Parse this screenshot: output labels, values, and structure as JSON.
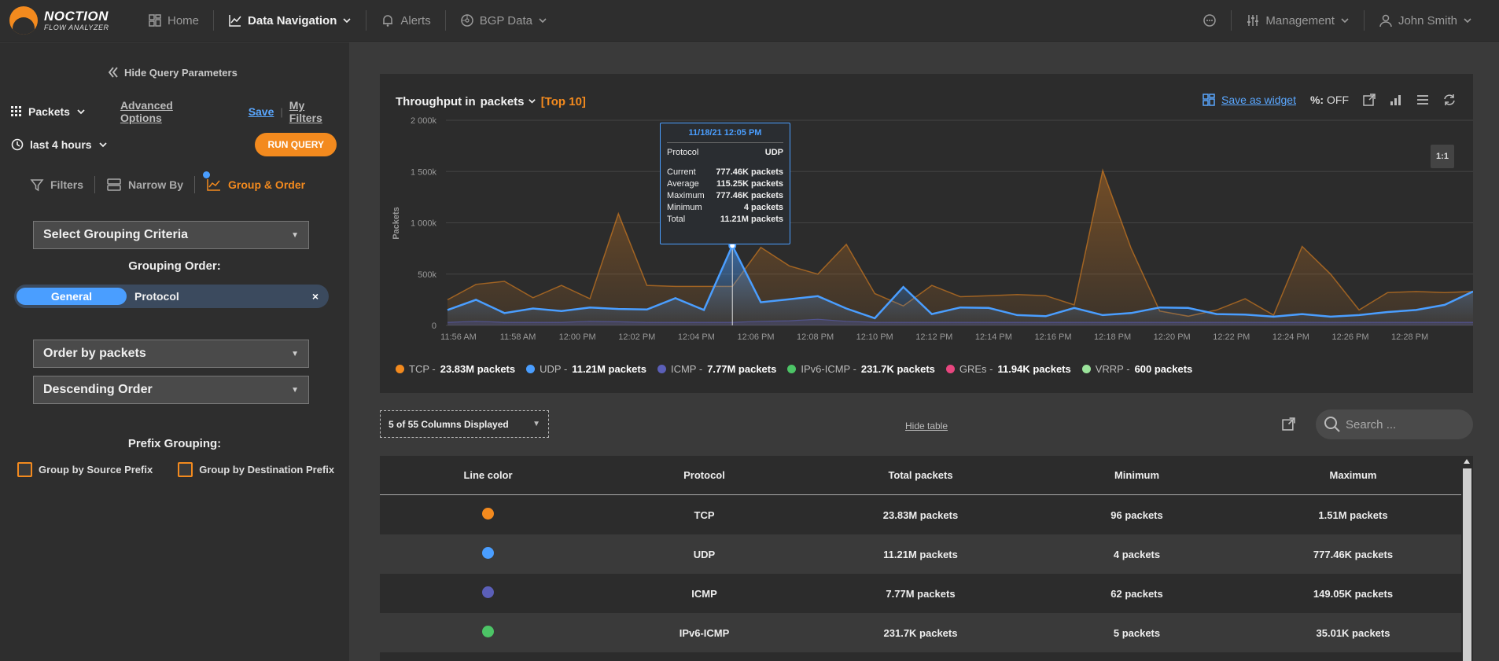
{
  "app": {
    "logo_line1": "NOCTION",
    "logo_line2": "FLOW ANALYZER"
  },
  "nav": {
    "home": "Home",
    "data_navigation": "Data Navigation",
    "alerts": "Alerts",
    "bgp_data": "BGP Data",
    "management": "Management",
    "user": "John Smith"
  },
  "sidebar": {
    "hide_query": "Hide Query Parameters",
    "measure": "Packets",
    "advanced_options": "Advanced Options",
    "save": "Save",
    "my_filters": "My Filters",
    "time_range": "last 4 hours",
    "run_query": "RUN QUERY",
    "tabs": {
      "filters": "Filters",
      "narrow_by": "Narrow By",
      "group_order": "Group & Order"
    },
    "grouping_criteria": "Select Grouping Criteria",
    "grouping_order_title": "Grouping Order:",
    "pill_general": "General",
    "pill_protocol": "Protocol",
    "pill_close": "×",
    "order_by": "Order by packets",
    "order_direction": "Descending Order",
    "prefix_title": "Prefix Grouping:",
    "group_source": "Group by Source Prefix",
    "group_dest": "Group by Destination Prefix"
  },
  "chart_header": {
    "title_prefix": "Throughput in",
    "unit": "packets",
    "top": "[Top 10]",
    "save_widget": "Save as widget",
    "pct_label": "%:",
    "pct_value": "OFF",
    "ratio_button": "1:1"
  },
  "chart_data": {
    "type": "area",
    "title": "Throughput in packets [Top 10]",
    "ylabel": "Packets",
    "ylim": [
      0,
      2000000
    ],
    "yticks": [
      "0",
      "500k",
      "1 000k",
      "1 500k",
      "2 000k"
    ],
    "xticks": [
      "11:56 AM",
      "11:58 AM",
      "12:00 PM",
      "12:02 PM",
      "12:04 PM",
      "12:06 PM",
      "12:08 PM",
      "12:10 PM",
      "12:12 PM",
      "12:14 PM",
      "12:16 PM",
      "12:18 PM",
      "12:20 PM",
      "12:22 PM",
      "12:24 PM",
      "12:26 PM",
      "12:28 PM"
    ],
    "series": [
      {
        "name": "TCP",
        "total": "23.83M packets",
        "color": "#f38a1e",
        "values": [
          250000,
          400000,
          430000,
          270000,
          390000,
          260000,
          1090000,
          390000,
          380000,
          380000,
          380000,
          760000,
          580000,
          500000,
          790000,
          310000,
          190000,
          390000,
          280000,
          290000,
          300000,
          290000,
          200000,
          1510000,
          750000,
          140000,
          90000,
          150000,
          260000,
          100000,
          770000,
          500000,
          150000,
          320000,
          330000,
          320000,
          330000
        ]
      },
      {
        "name": "UDP",
        "total": "11.21M packets",
        "color": "#4a9eff",
        "values": [
          150000,
          250000,
          120000,
          165000,
          140000,
          175000,
          160000,
          155000,
          265000,
          150000,
          777460,
          225000,
          255000,
          285000,
          165000,
          70000,
          375000,
          110000,
          175000,
          170000,
          100000,
          90000,
          170000,
          100000,
          120000,
          175000,
          170000,
          110000,
          105000,
          85000,
          110000,
          85000,
          100000,
          130000,
          150000,
          200000,
          330000
        ]
      },
      {
        "name": "ICMP",
        "total": "7.77M packets",
        "color": "#5b5fb8",
        "values": [
          30000,
          40000,
          30000,
          30000,
          30000,
          40000,
          35000,
          30000,
          30000,
          30000,
          30000,
          40000,
          45000,
          60000,
          40000,
          30000,
          30000,
          30000,
          30000,
          30000,
          30000,
          30000,
          30000,
          30000,
          30000,
          30000,
          30000,
          30000,
          30000,
          30000,
          30000,
          30000,
          30000,
          30000,
          30000,
          30000,
          30000
        ]
      },
      {
        "name": "IPv6-ICMP",
        "total": "231.7K packets",
        "color": "#4cc466",
        "values": []
      },
      {
        "name": "GREs",
        "total": "11.94K packets",
        "color": "#e8467f",
        "values": []
      },
      {
        "name": "VRRP",
        "total": "600 packets",
        "color": "#9be39b",
        "values": []
      }
    ]
  },
  "tooltip": {
    "date": "11/18/21 12:05 PM",
    "protocol_label": "Protocol",
    "protocol_value": "UDP",
    "current_label": "Current",
    "current_value": "777.46K packets",
    "average_label": "Average",
    "average_value": "115.25K packets",
    "maximum_label": "Maximum",
    "maximum_value": "777.46K packets",
    "minimum_label": "Minimum",
    "minimum_value": "4 packets",
    "total_label": "Total",
    "total_value": "11.21M packets"
  },
  "table_controls": {
    "columns": "5 of 55 Columns Displayed",
    "hide_table": "Hide table",
    "search_placeholder": "Search ..."
  },
  "table": {
    "headers": [
      "Line color",
      "Protocol",
      "Total packets",
      "Minimum",
      "Maximum"
    ],
    "rows": [
      {
        "color": "#f38a1e",
        "protocol": "TCP",
        "total": "23.83M packets",
        "min": "96 packets",
        "max": "1.51M packets"
      },
      {
        "color": "#4a9eff",
        "protocol": "UDP",
        "total": "11.21M packets",
        "min": "4 packets",
        "max": "777.46K packets"
      },
      {
        "color": "#5b5fb8",
        "protocol": "ICMP",
        "total": "7.77M packets",
        "min": "62 packets",
        "max": "149.05K packets"
      },
      {
        "color": "#4cc466",
        "protocol": "IPv6-ICMP",
        "total": "231.7K packets",
        "min": "5 packets",
        "max": "35.01K packets"
      }
    ]
  }
}
